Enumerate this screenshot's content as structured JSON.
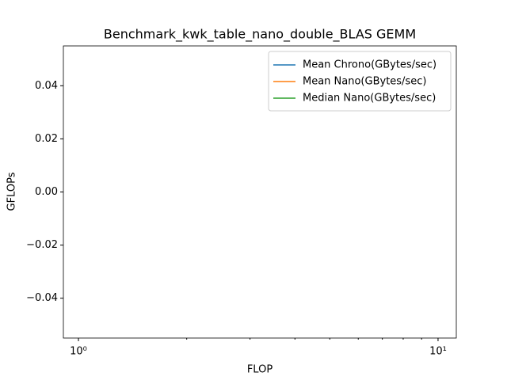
{
  "chart_data": {
    "type": "line",
    "title": "Benchmark_kwk_table_nano_double_BLAS GEMM",
    "xlabel": "FLOP",
    "ylabel": "GFLOPs",
    "xscale": "log",
    "x": [],
    "series": [
      {
        "name": "Mean Chrono(GBytes/sec)",
        "color": "#1f77b4",
        "values": []
      },
      {
        "name": "Mean Nano(GBytes/sec)",
        "color": "#ff7f0e",
        "values": []
      },
      {
        "name": "Median Nano(GBytes/sec)",
        "color": "#2ca02c",
        "values": []
      }
    ],
    "xlim": [
      0.908,
      11.24
    ],
    "xticks": [
      {
        "value": 1,
        "label": "10⁰"
      },
      {
        "value": 10,
        "label": "10¹"
      }
    ],
    "xminorticks": [
      2,
      3,
      4,
      5,
      6,
      7,
      8,
      9
    ],
    "ylim": [
      -0.055,
      0.055
    ],
    "yticks": [
      {
        "value": -0.04,
        "label": "−0.04"
      },
      {
        "value": -0.02,
        "label": "−0.02"
      },
      {
        "value": 0,
        "label": "0.00"
      },
      0.02,
      0.04
    ],
    "legend": "upper-right"
  }
}
